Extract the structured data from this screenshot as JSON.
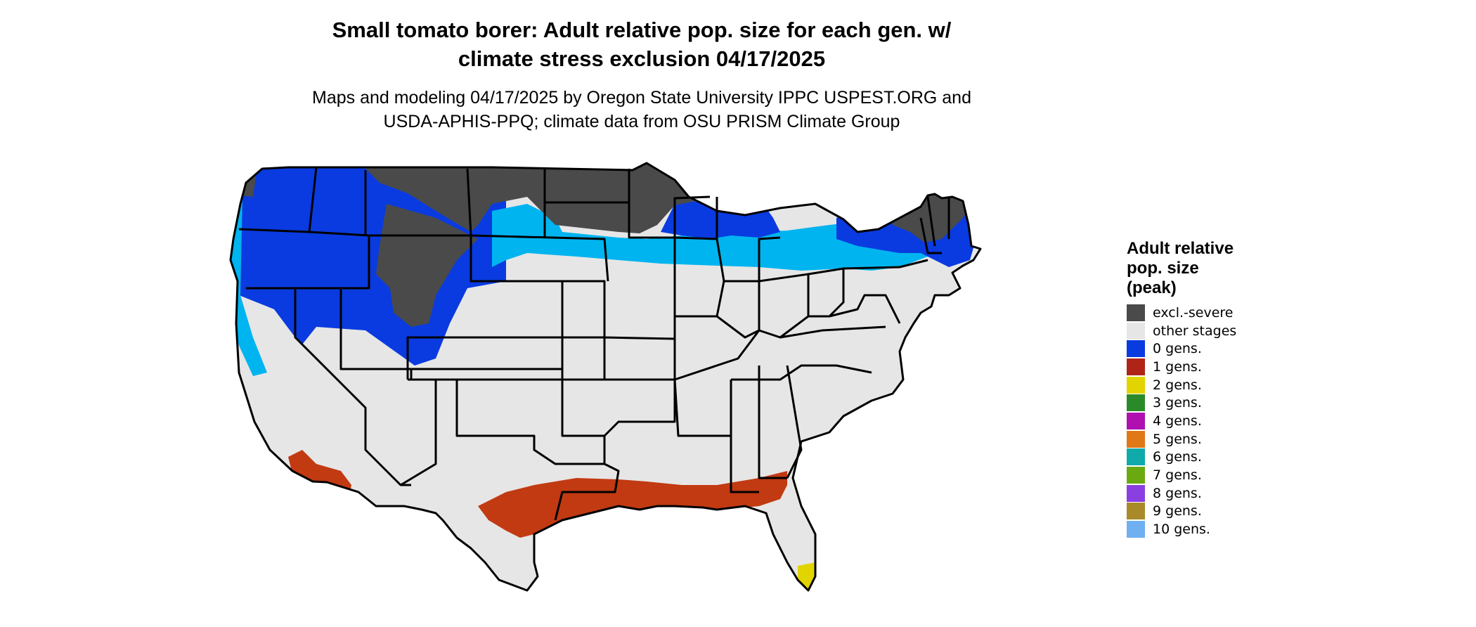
{
  "title_line1": "Small tomato borer: Adult relative pop. size for each gen. w/",
  "title_line2": "climate stress exclusion 04/17/2025",
  "subtitle_line1": "Maps and modeling 04/17/2025 by Oregon State University IPPC USPEST.ORG and",
  "subtitle_line2": "USDA-APHIS-PPQ; climate data from OSU PRISM Climate Group",
  "legend": {
    "title_lines": [
      "Adult relative",
      "pop. size",
      "(peak)"
    ],
    "items": [
      {
        "label": "excl.-severe",
        "color": "#4a4a4a"
      },
      {
        "label": "other stages",
        "color": "#e6e6e6"
      },
      {
        "label": "0 gens.",
        "color": "#0a3be0"
      },
      {
        "label": "1 gens.",
        "color": "#b02418"
      },
      {
        "label": "2 gens.",
        "color": "#e2d400"
      },
      {
        "label": "3 gens.",
        "color": "#2a8a2a"
      },
      {
        "label": "4 gens.",
        "color": "#b010b0"
      },
      {
        "label": "5 gens.",
        "color": "#e07818"
      },
      {
        "label": "6 gens.",
        "color": "#10aaaa"
      },
      {
        "label": "7 gens.",
        "color": "#6aaa10"
      },
      {
        "label": "8 gens.",
        "color": "#8a40e0"
      },
      {
        "label": "9 gens.",
        "color": "#a88a28"
      },
      {
        "label": "10 gens.",
        "color": "#70b0f0"
      }
    ]
  },
  "map_colors": {
    "excluded": "#4a4a4a",
    "other": "#e6e6e6",
    "gen0": "#0a3be0",
    "gen0_light": "#00b4f0",
    "gen1": "#c23a12",
    "gen2": "#e2d400",
    "border": "#000000"
  }
}
